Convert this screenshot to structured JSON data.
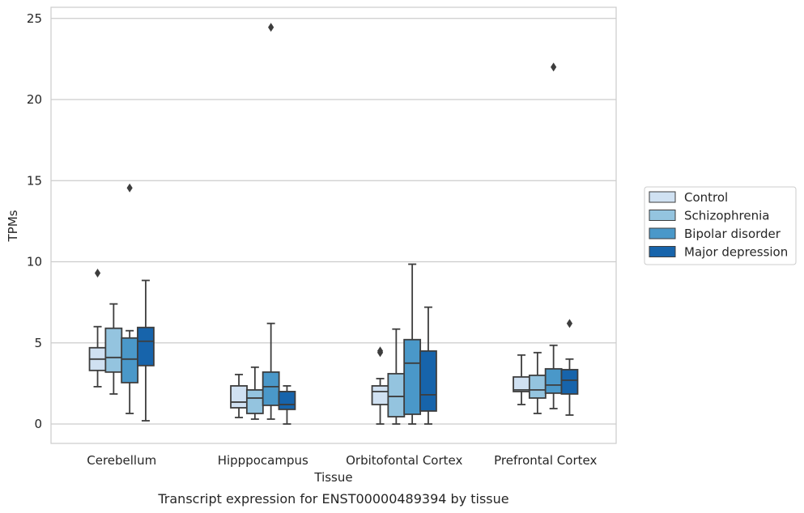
{
  "chart_data": {
    "type": "box",
    "title": "Transcript expression for ENST00000489394 by tissue",
    "xlabel": "Tissue",
    "ylabel": "TPMs",
    "ylim": [
      -1.1,
      25.7
    ],
    "yticks": [
      0,
      5,
      10,
      15,
      20,
      25
    ],
    "grid": "horizontal",
    "legend_position": "right",
    "categories": [
      "Cerebellum",
      "Hipppocampus",
      "Orbitofontal Cortex",
      "Prefrontal Cortex"
    ],
    "series": [
      {
        "name": "Control",
        "color": "#d0e1f2",
        "boxes": [
          {
            "whislo": 2.3,
            "q1": 3.3,
            "med": 4.0,
            "q3": 4.7,
            "whishi": 6.0,
            "fliers": [
              9.3
            ]
          },
          {
            "whislo": 0.4,
            "q1": 1.0,
            "med": 1.35,
            "q3": 2.35,
            "whishi": 3.05,
            "fliers": []
          },
          {
            "whislo": 0.0,
            "q1": 1.2,
            "med": 2.0,
            "q3": 2.35,
            "whishi": 2.8,
            "fliers": [
              4.4,
              4.5
            ]
          },
          {
            "whislo": 1.2,
            "q1": 2.0,
            "med": 2.1,
            "q3": 2.9,
            "whishi": 4.25,
            "fliers": []
          }
        ]
      },
      {
        "name": "Schizophrenia",
        "color": "#94c4df",
        "boxes": [
          {
            "whislo": 1.85,
            "q1": 3.2,
            "med": 4.1,
            "q3": 5.9,
            "whishi": 7.4,
            "fliers": []
          },
          {
            "whislo": 0.3,
            "q1": 0.65,
            "med": 1.6,
            "q3": 2.1,
            "whishi": 3.5,
            "fliers": []
          },
          {
            "whislo": 0.0,
            "q1": 0.45,
            "med": 1.7,
            "q3": 3.1,
            "whishi": 5.85,
            "fliers": []
          },
          {
            "whislo": 0.65,
            "q1": 1.6,
            "med": 2.1,
            "q3": 3.0,
            "whishi": 4.4,
            "fliers": []
          }
        ]
      },
      {
        "name": "Bipolar disorder",
        "color": "#4a98c9",
        "boxes": [
          {
            "whislo": 0.65,
            "q1": 2.55,
            "med": 4.0,
            "q3": 5.3,
            "whishi": 5.75,
            "fliers": [
              14.55
            ]
          },
          {
            "whislo": 0.3,
            "q1": 1.15,
            "med": 2.3,
            "q3": 3.2,
            "whishi": 6.2,
            "fliers": [
              24.45
            ]
          },
          {
            "whislo": 0.0,
            "q1": 0.6,
            "med": 3.75,
            "q3": 5.2,
            "whishi": 9.85,
            "fliers": []
          },
          {
            "whislo": 0.95,
            "q1": 1.9,
            "med": 2.4,
            "q3": 3.4,
            "whishi": 4.85,
            "fliers": [
              22.0
            ]
          }
        ]
      },
      {
        "name": "Major depression",
        "color": "#1764ab",
        "boxes": [
          {
            "whislo": 0.2,
            "q1": 3.6,
            "med": 5.1,
            "q3": 5.95,
            "whishi": 8.85,
            "fliers": []
          },
          {
            "whislo": 0.0,
            "q1": 0.9,
            "med": 1.2,
            "q3": 2.0,
            "whishi": 2.35,
            "fliers": []
          },
          {
            "whislo": 0.0,
            "q1": 0.8,
            "med": 1.8,
            "q3": 4.5,
            "whishi": 7.2,
            "fliers": []
          },
          {
            "whislo": 0.55,
            "q1": 1.85,
            "med": 2.7,
            "q3": 3.35,
            "whishi": 4.0,
            "fliers": [
              6.2
            ]
          }
        ]
      }
    ]
  }
}
